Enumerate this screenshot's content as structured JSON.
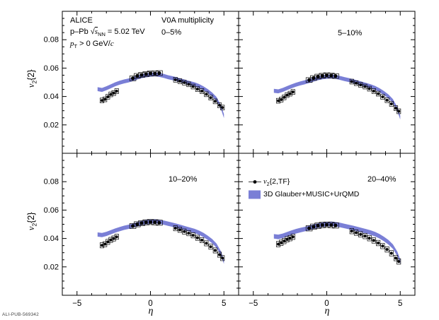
{
  "header": {
    "experiment": "ALICE",
    "system_pre": "p–Pb ",
    "sqrt": "√",
    "s_var": "s",
    "s_sub": "NN",
    "system_post": " = 5.02 TeV",
    "pt_var": "p",
    "pt_sub": "T",
    "pt_post": " > 0 GeV/",
    "pt_c": "c",
    "multiplicity": "V0A multiplicity"
  },
  "axis": {
    "y_var": "v",
    "y_sub": "2",
    "y_post": "{2}",
    "x_label": "η"
  },
  "legend": {
    "data_v": "v",
    "data_sub": "2",
    "data_post": "{2,TF}",
    "model": "3D Glauber+MUSIC+UrQMD"
  },
  "footer": {
    "id": "ALI-PUB-569342"
  },
  "chart_data": {
    "type": "scatter",
    "title": "Pseudorapidity dependence of v2{2} in p–Pb, four V0A multiplicity classes",
    "xlabel": "η",
    "ylabel": "v2{2}",
    "xlim": [
      -6,
      6
    ],
    "ylim": [
      0,
      0.1
    ],
    "x_ticks": [
      -5,
      0,
      5
    ],
    "y_ticks": [
      0.02,
      0.04,
      0.06,
      0.08
    ],
    "x_minor_step": 1,
    "y_minor_step": 0.005,
    "band_color": "#6f74d2",
    "band_opacity": 0.92,
    "marker_color": "#000000",
    "series_legend": "v2{2,TF}",
    "band_legend": "3D Glauber+MUSIC+UrQMD",
    "band_x": [
      -3.6,
      -3.3,
      -3.0,
      -2.7,
      -2.4,
      -2.1,
      -1.8,
      -1.5,
      -1.2,
      -0.9,
      -0.6,
      -0.3,
      0,
      0.3,
      0.6,
      0.9,
      1.2,
      1.5,
      1.8,
      2.1,
      2.4,
      2.7,
      3.0,
      3.3,
      3.6,
      3.9,
      4.2,
      4.5,
      4.8,
      5.0
    ],
    "points_x": [
      -3.3,
      -3.1,
      -2.9,
      -2.7,
      -2.5,
      -2.3,
      -1.2,
      -0.9,
      -0.6,
      -0.3,
      0.0,
      0.3,
      0.6,
      1.7,
      2.0,
      2.3,
      2.6,
      2.9,
      3.2,
      3.5,
      3.8,
      4.1,
      4.4,
      4.7,
      4.9
    ],
    "panels": [
      {
        "label": "0–5%",
        "band_halfwidth": 0.0014,
        "band_y": [
          0.0452,
          0.0446,
          0.0458,
          0.0472,
          0.0486,
          0.0497,
          0.0506,
          0.0513,
          0.0522,
          0.0534,
          0.0543,
          0.0549,
          0.0553,
          0.0556,
          0.0552,
          0.0545,
          0.0536,
          0.0529,
          0.0521,
          0.0512,
          0.0503,
          0.0494,
          0.0486,
          0.0474,
          0.0458,
          0.0438,
          0.0414,
          0.0382,
          0.0325,
          0.0262
        ],
        "points_y": [
          0.0372,
          0.038,
          0.0398,
          0.0415,
          0.0424,
          0.0438,
          0.0528,
          0.0545,
          0.0552,
          0.0558,
          0.0563,
          0.0562,
          0.0565,
          0.0518,
          0.0508,
          0.0498,
          0.0486,
          0.047,
          0.0452,
          0.0438,
          0.0416,
          0.0392,
          0.0366,
          0.0338,
          0.0322
        ],
        "stat": 0.0006,
        "syst": 0.0017
      },
      {
        "label": "5–10%",
        "band_halfwidth": 0.0014,
        "band_y": [
          0.044,
          0.0436,
          0.0446,
          0.0459,
          0.0472,
          0.0483,
          0.0492,
          0.05,
          0.0509,
          0.0519,
          0.0528,
          0.0535,
          0.0539,
          0.0541,
          0.0538,
          0.0531,
          0.0523,
          0.0516,
          0.0508,
          0.0499,
          0.049,
          0.0481,
          0.0472,
          0.046,
          0.0444,
          0.0424,
          0.04,
          0.0368,
          0.0312,
          0.0252
        ],
        "points_y": [
          0.037,
          0.0378,
          0.0394,
          0.041,
          0.042,
          0.0432,
          0.0516,
          0.053,
          0.054,
          0.0546,
          0.055,
          0.0548,
          0.0544,
          0.0505,
          0.0494,
          0.0482,
          0.047,
          0.0455,
          0.0438,
          0.042,
          0.0398,
          0.0374,
          0.0348,
          0.0318,
          0.0296
        ],
        "stat": 0.0007,
        "syst": 0.0017
      },
      {
        "label": "10–20%",
        "band_halfwidth": 0.0015,
        "band_y": [
          0.0428,
          0.0424,
          0.0432,
          0.0444,
          0.0456,
          0.0466,
          0.0475,
          0.0482,
          0.049,
          0.05,
          0.0509,
          0.0515,
          0.0519,
          0.0521,
          0.0518,
          0.0512,
          0.0504,
          0.0497,
          0.0489,
          0.048,
          0.0471,
          0.0462,
          0.0453,
          0.0441,
          0.0425,
          0.0405,
          0.0381,
          0.0349,
          0.0294,
          0.0236
        ],
        "points_y": [
          0.0352,
          0.036,
          0.0376,
          0.039,
          0.04,
          0.0412,
          0.0488,
          0.05,
          0.0508,
          0.0514,
          0.0516,
          0.0514,
          0.0511,
          0.0472,
          0.0461,
          0.0449,
          0.0437,
          0.0422,
          0.0405,
          0.0388,
          0.0366,
          0.0342,
          0.0316,
          0.0286,
          0.0262
        ],
        "stat": 0.0008,
        "syst": 0.0018
      },
      {
        "label": "20–40%",
        "band_halfwidth": 0.0016,
        "band_y": [
          0.0415,
          0.0411,
          0.0419,
          0.043,
          0.0441,
          0.0451,
          0.0459,
          0.0466,
          0.0474,
          0.0483,
          0.0491,
          0.0497,
          0.0501,
          0.0503,
          0.05,
          0.0495,
          0.0488,
          0.0481,
          0.0474,
          0.0466,
          0.0458,
          0.045,
          0.0441,
          0.043,
          0.0415,
          0.0396,
          0.0373,
          0.0343,
          0.0292,
          0.0238
        ],
        "points_y": [
          0.036,
          0.037,
          0.0382,
          0.0394,
          0.0402,
          0.0412,
          0.0472,
          0.0483,
          0.049,
          0.0495,
          0.0497,
          0.0495,
          0.0492,
          0.0452,
          0.0441,
          0.0429,
          0.0417,
          0.0402,
          0.0386,
          0.0368,
          0.0347,
          0.0323,
          0.0296,
          0.0262,
          0.0238
        ],
        "stat": 0.0011,
        "syst": 0.0019
      }
    ]
  }
}
